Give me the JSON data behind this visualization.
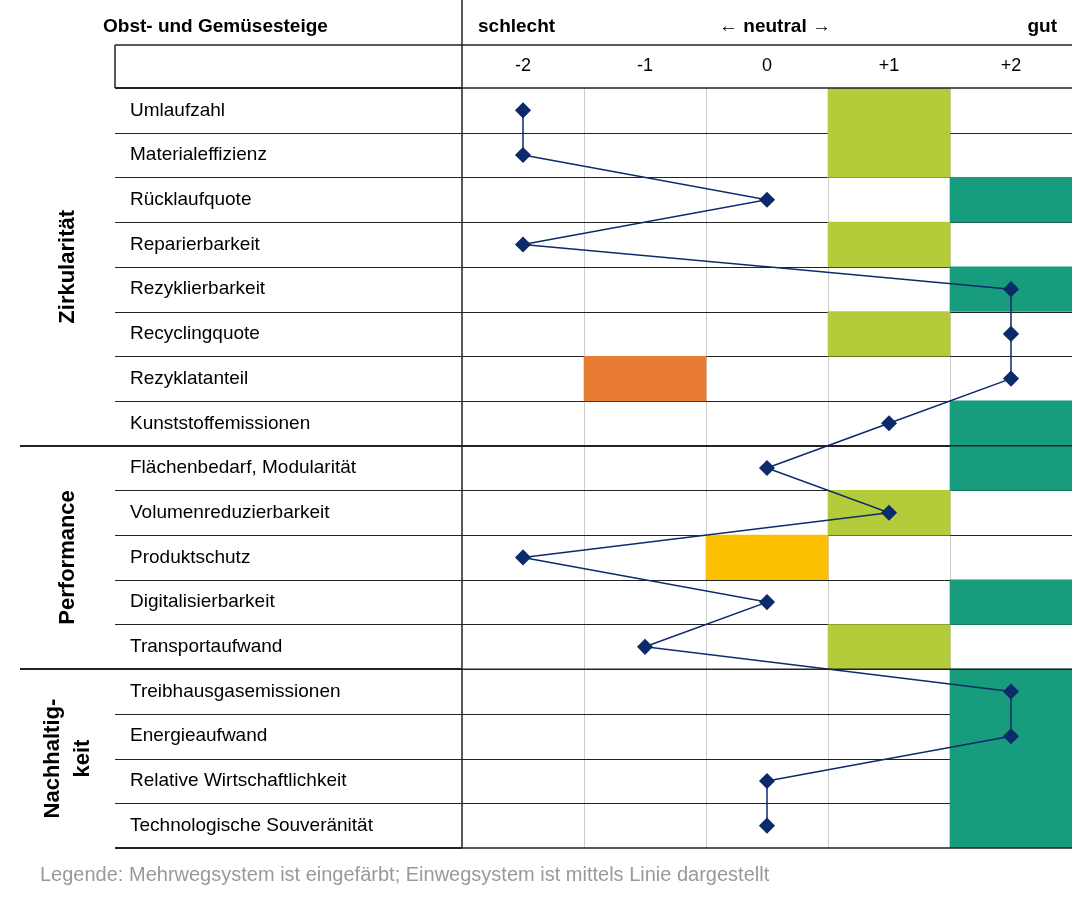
{
  "chart_data": {
    "type": "bar",
    "orientation": "horizontal",
    "title": "Obst- und Gemüsesteige",
    "categories": [
      "Umlaufzahl",
      "Materialeffizienz",
      "Rücklaufquote",
      "Reparierbarkeit",
      "Rezyklierbarkeit",
      "Recyclingquote",
      "Rezyklatanteil",
      "Kunststoffemissionen",
      "Flächenbedarf, Modularität",
      "Volumenreduzierbarkeit",
      "Produktschutz",
      "Digitalisierbarkeit",
      "Transportaufwand",
      "Treibhausgasemissionen",
      "Energieaufwand",
      "Relative Wirtschaftlichkeit",
      "Technologische Souveränität"
    ],
    "series": [
      {
        "base": [
          0.5,
          0.5,
          1.5,
          0.5,
          1.5,
          0.5,
          -1.5,
          1.5,
          1.5,
          0.5,
          -0.5,
          1.5,
          0.5,
          1.5,
          1.5,
          1.5,
          1.5
        ],
        "values": [
          1,
          1,
          1,
          1,
          1,
          1,
          1,
          1,
          1,
          1,
          1,
          1,
          1,
          1,
          1,
          1,
          1
        ],
        "colors": [
          "#b5cc3a",
          "#b5cc3a",
          "#179c7d",
          "#b5cc3a",
          "#179c7d",
          "#b5cc3a",
          "#e87c32",
          "#179c7d",
          "#179c7d",
          "#b5cc3a",
          "#fcc000",
          "#179c7d",
          "#b5cc3a",
          "#179c7d",
          "#179c7d",
          "#179c7d",
          "#179c7d"
        ]
      },
      {
        "type": "line",
        "color": "#0d2a6b",
        "values": [
          -2,
          -2,
          0,
          -2,
          2,
          2,
          2,
          1,
          0,
          1,
          -2,
          0,
          -1,
          2,
          2,
          0,
          0
        ]
      }
    ],
    "xlim": [
      -2.5,
      2.5
    ],
    "xticks": [
      -2,
      -1,
      0,
      {
        "value": 1,
        "label": "+1"
      },
      {
        "value": 2,
        "label": "+2"
      }
    ],
    "grid": true,
    "marker": "diamond",
    "annotations": [
      "schlecht",
      "← neutral →",
      "gut",
      "Zirkularität",
      "Performance",
      "Nachhaltig-keit",
      "Legende: Mehrwegsystem ist eingefärbt; Einwegsystem ist mittels Linie dargestellt"
    ]
  }
}
